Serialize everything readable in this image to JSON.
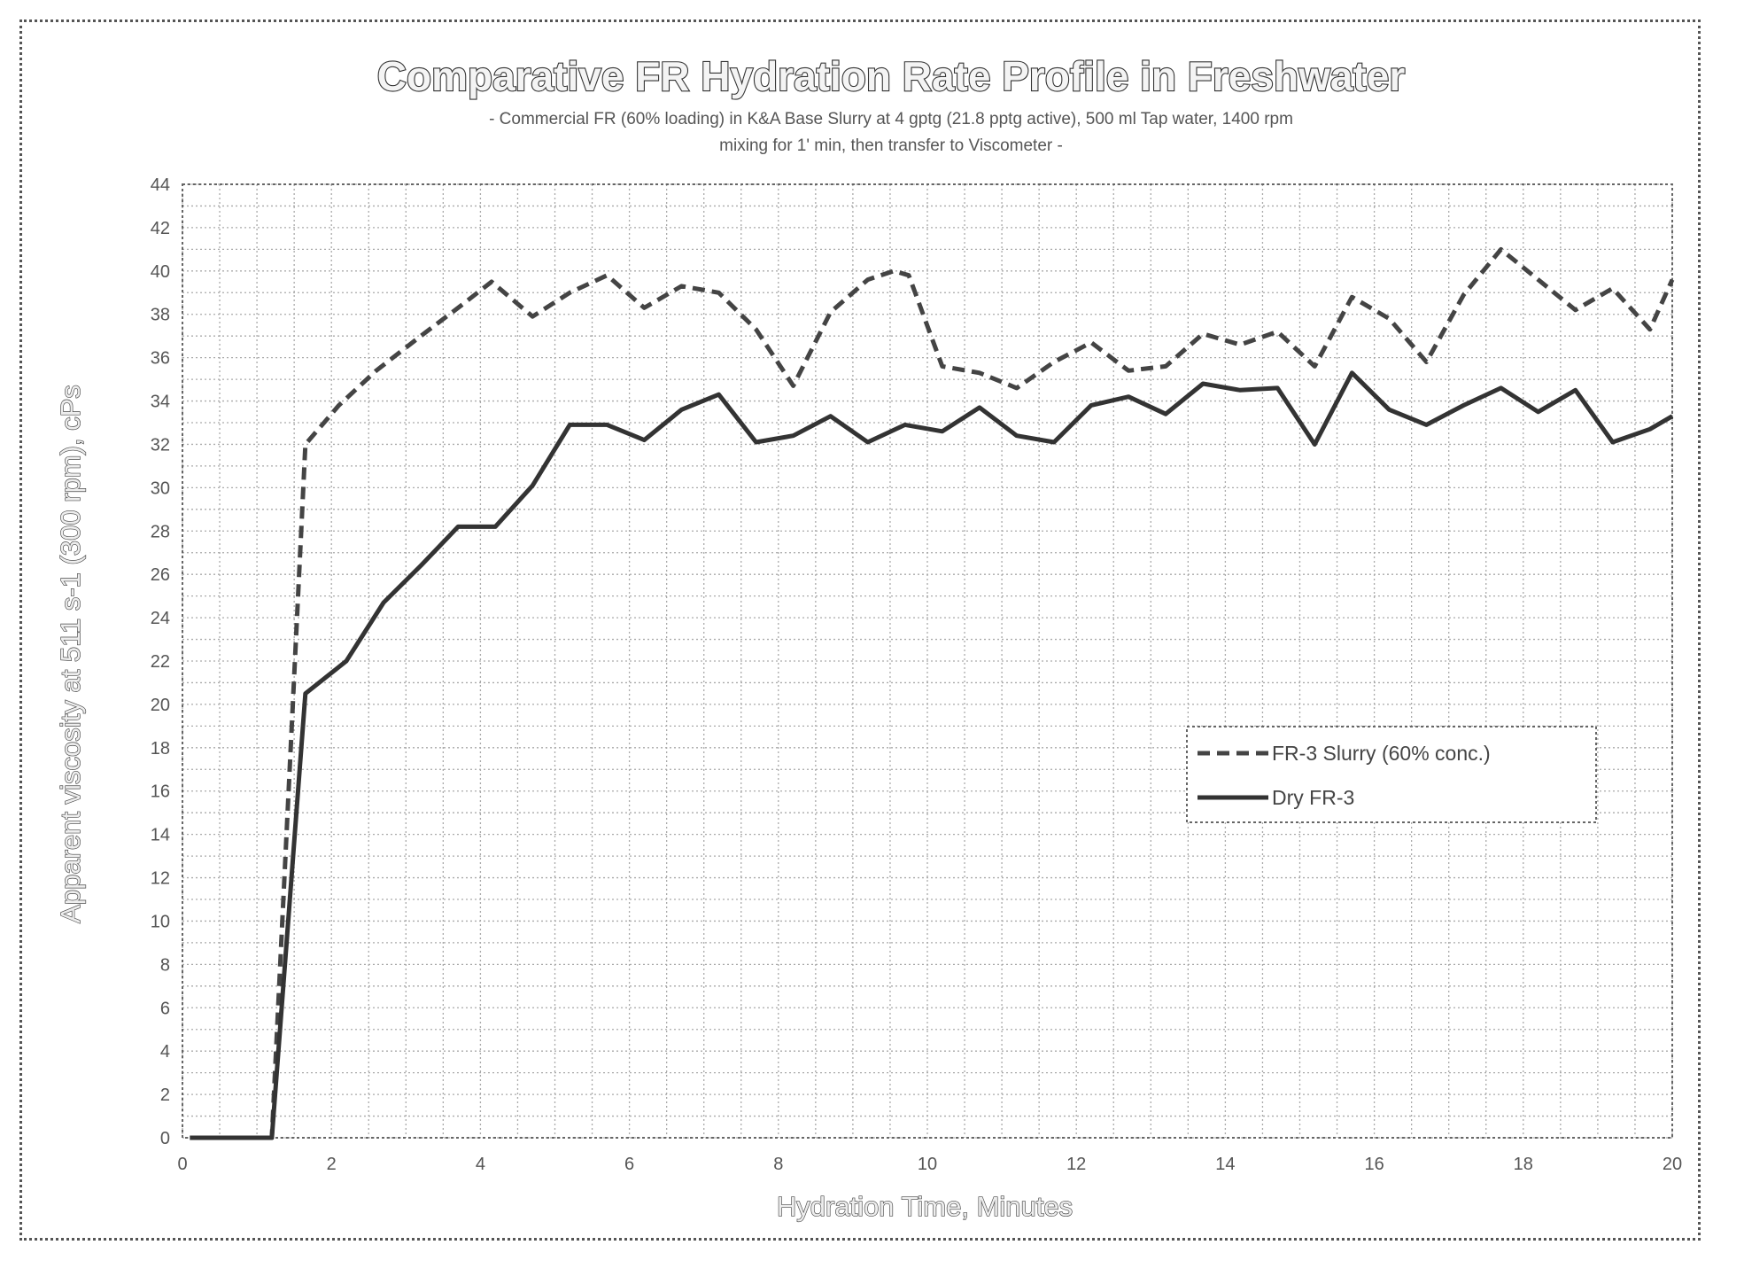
{
  "chart_data": {
    "type": "line",
    "title": "Comparative FR Hydration Rate Profile in Freshwater",
    "subtitle_lines": [
      "- Commercial FR (60% loading) in K&A Base Slurry at 4 gptg (21.8 pptg active), 500 ml Tap water, 1400 rpm",
      "mixing for 1' min, then transfer to Viscometer -"
    ],
    "xlabel": "Hydration Time, Minutes",
    "ylabel": "Apparent viscosity at 511 s-1 (300 rpm), cPs",
    "xlim": [
      0,
      20
    ],
    "ylim": [
      0,
      44
    ],
    "xticks": [
      "0",
      "2",
      "4",
      "6",
      "8",
      "10",
      "12",
      "14",
      "16",
      "18",
      "20"
    ],
    "yticks": [
      "0",
      "2",
      "4",
      "6",
      "8",
      "10",
      "12",
      "14",
      "16",
      "18",
      "20",
      "22",
      "24",
      "26",
      "28",
      "30",
      "32",
      "34",
      "36",
      "38",
      "40",
      "42",
      "44"
    ],
    "grid": true,
    "legend_position": "middle-right",
    "series": [
      {
        "name": "FR-3 Slurry (60% conc.)",
        "style": "dashed",
        "color": "#444444",
        "x": [
          0.1,
          0.6,
          1.2,
          1.65,
          2.1,
          2.6,
          3.2,
          3.7,
          4.15,
          4.7,
          5.2,
          5.7,
          6.2,
          6.7,
          7.2,
          7.7,
          8.2,
          8.7,
          9.2,
          9.55,
          9.75,
          10.2,
          10.7,
          11.2,
          11.7,
          12.2,
          12.7,
          13.2,
          13.7,
          14.2,
          14.7,
          15.2,
          15.7,
          16.2,
          16.7,
          17.2,
          17.7,
          18.2,
          18.7,
          19.2,
          19.7,
          20.0
        ],
        "y": [
          0,
          0,
          0,
          32,
          33.8,
          35.4,
          37,
          38.3,
          39.5,
          37.9,
          39,
          39.8,
          38.3,
          39.3,
          39,
          37.3,
          34.7,
          38.1,
          39.6,
          40,
          39.8,
          35.6,
          35.3,
          34.6,
          35.8,
          36.7,
          35.4,
          35.6,
          37.1,
          36.6,
          37.2,
          35.6,
          38.8,
          37.8,
          35.8,
          38.9,
          41,
          39.6,
          38.2,
          39.2,
          37.3,
          39.6
        ]
      },
      {
        "name": "Dry FR-3",
        "style": "solid",
        "color": "#333333",
        "x": [
          0.1,
          0.6,
          1.2,
          1.65,
          2.2,
          2.7,
          3.2,
          3.7,
          4.2,
          4.7,
          5.2,
          5.7,
          6.2,
          6.7,
          7.2,
          7.7,
          8.2,
          8.7,
          9.2,
          9.7,
          10.2,
          10.7,
          11.2,
          11.7,
          12.2,
          12.7,
          13.2,
          13.7,
          14.2,
          14.7,
          15.2,
          15.7,
          16.2,
          16.7,
          17.2,
          17.7,
          18.2,
          18.7,
          19.2,
          19.7,
          20.0
        ],
        "y": [
          0,
          0,
          0,
          20.5,
          22,
          24.7,
          26.4,
          28.2,
          28.2,
          30.1,
          32.9,
          32.9,
          32.2,
          33.6,
          34.3,
          32.1,
          32.4,
          33.3,
          32.1,
          32.9,
          32.6,
          33.7,
          32.4,
          32.1,
          33.8,
          34.2,
          33.4,
          34.8,
          34.5,
          34.6,
          32,
          35.3,
          33.6,
          32.9,
          33.8,
          34.6,
          33.5,
          34.5,
          32.1,
          32.7,
          33.3
        ]
      }
    ]
  }
}
